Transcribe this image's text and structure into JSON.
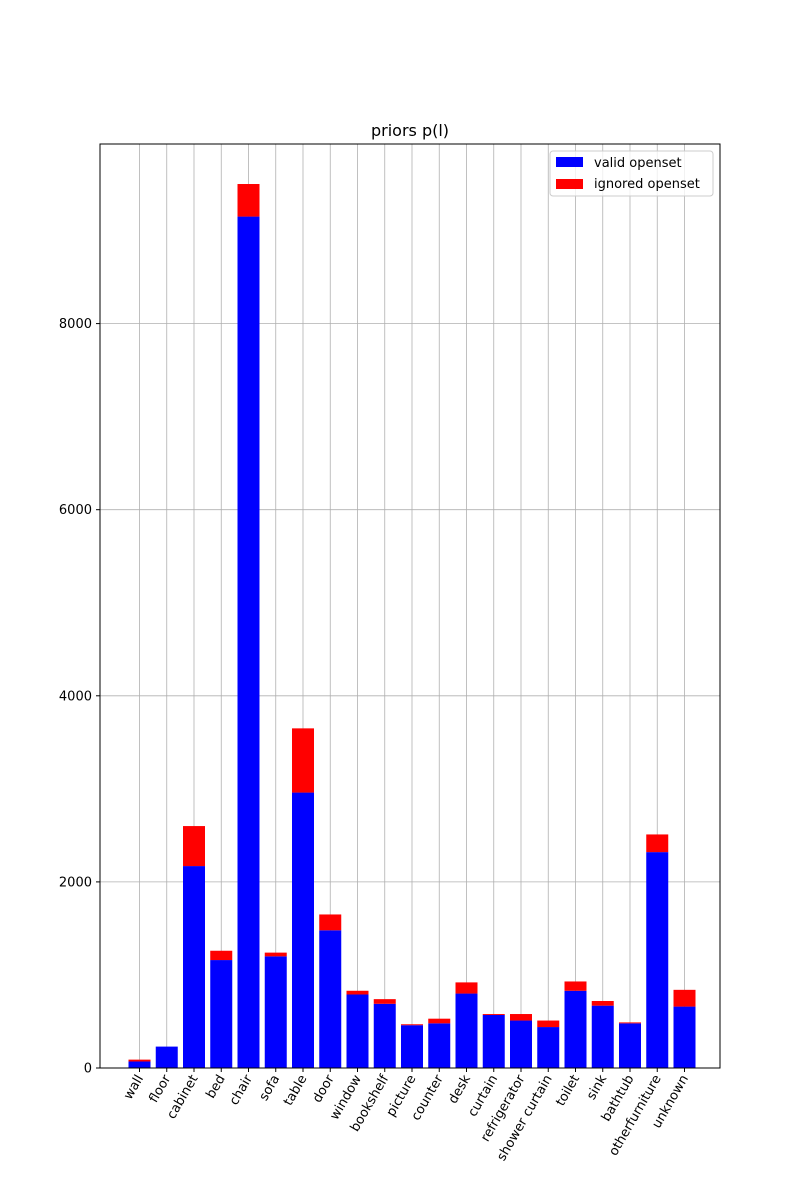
{
  "chart_data": {
    "type": "bar",
    "stacked": true,
    "title": "priors p(l)",
    "xlabel": "",
    "ylabel": "",
    "categories": [
      "wall",
      "floor",
      "cabinet",
      "bed",
      "chair",
      "sofa",
      "table",
      "door",
      "window",
      "bookshelf",
      "picture",
      "counter",
      "desk",
      "curtain",
      "refrigerator",
      "shower curtain",
      "toilet",
      "sink",
      "bathtub",
      "otherfurniture",
      "unknown"
    ],
    "series": [
      {
        "name": "valid openset",
        "color": "#0000ff",
        "values": [
          70,
          230,
          2170,
          1160,
          9150,
          1200,
          2960,
          1480,
          790,
          690,
          460,
          480,
          800,
          570,
          510,
          440,
          830,
          670,
          480,
          2320,
          660
        ]
      },
      {
        "name": "ignored openset",
        "color": "#ff0000",
        "values": [
          20,
          0,
          430,
          100,
          350,
          40,
          690,
          170,
          40,
          50,
          10,
          50,
          120,
          10,
          70,
          70,
          100,
          50,
          10,
          190,
          180
        ]
      }
    ],
    "ylim": [
      0,
      9930
    ],
    "yticks": [
      0,
      2000,
      4000,
      6000,
      8000
    ],
    "grid": true,
    "legend_position": "top-right"
  }
}
